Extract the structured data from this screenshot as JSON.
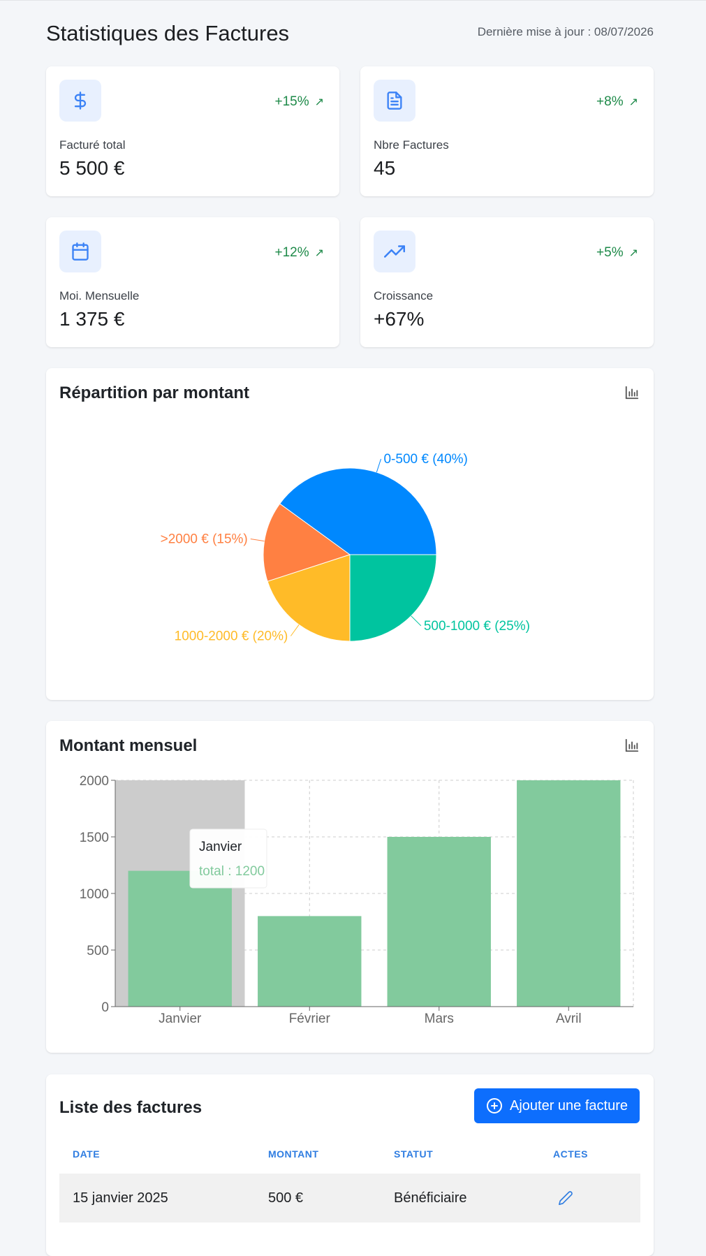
{
  "header": {
    "title": "Statistiques des Factures",
    "updated": "Dernière mise à jour : 08/07/2026"
  },
  "stats": [
    {
      "icon": "dollar-icon",
      "change": "+15%",
      "label": "Facturé total",
      "value": "5 500 €"
    },
    {
      "icon": "document-icon",
      "change": "+8%",
      "label": "Nbre Factures",
      "value": "45"
    },
    {
      "icon": "calendar-icon",
      "change": "+12%",
      "label": "Moi. Mensuelle",
      "value": "1 375 €"
    },
    {
      "icon": "trending-up-icon",
      "change": "+5%",
      "label": "Croissance",
      "value": "+67%"
    }
  ],
  "colors": {
    "accent": "#0d6efd",
    "positive": "#1e8a49",
    "bar": "#82ca9d",
    "pie": [
      "#0088fe",
      "#ff8042",
      "#ffbb28",
      "#00c49f"
    ]
  },
  "pie_panel": {
    "title": "Répartition par montant",
    "icon": "bar-chart-icon"
  },
  "bar_panel": {
    "title": "Montant mensuel",
    "icon": "bar-chart-icon",
    "tooltip": {
      "title": "Janvier",
      "text": "total : 1200"
    }
  },
  "chart_data": [
    {
      "type": "pie",
      "categories": [
        "0-500 €",
        ">2000 €",
        "1000-2000 €",
        "500-1000 €"
      ],
      "values": [
        40,
        15,
        20,
        25
      ],
      "labels": [
        "0-500 € (40%)",
        ">2000 € (15%)",
        "1000-2000 € (20%)",
        "500-1000 € (25%)"
      ],
      "title": "Répartition par montant"
    },
    {
      "type": "bar",
      "categories": [
        "Janvier",
        "Février",
        "Mars",
        "Avril"
      ],
      "series": [
        {
          "name": "total",
          "values": [
            1200,
            800,
            1500,
            2000
          ]
        }
      ],
      "y_ticks": [
        0,
        500,
        1000,
        1500,
        2000
      ],
      "ylim": [
        0,
        2000
      ],
      "grid": true,
      "title": "Montant mensuel",
      "highlighted_category": "Janvier"
    }
  ],
  "invoices": {
    "title": "Liste des factures",
    "add_button_label": "Ajouter une facture",
    "columns": [
      "DATE",
      "MONTANT",
      "STATUT",
      "ACTES"
    ],
    "rows": [
      {
        "date": "15 janvier 2025",
        "amount": "500 €",
        "status": "Bénéficiaire"
      }
    ]
  }
}
